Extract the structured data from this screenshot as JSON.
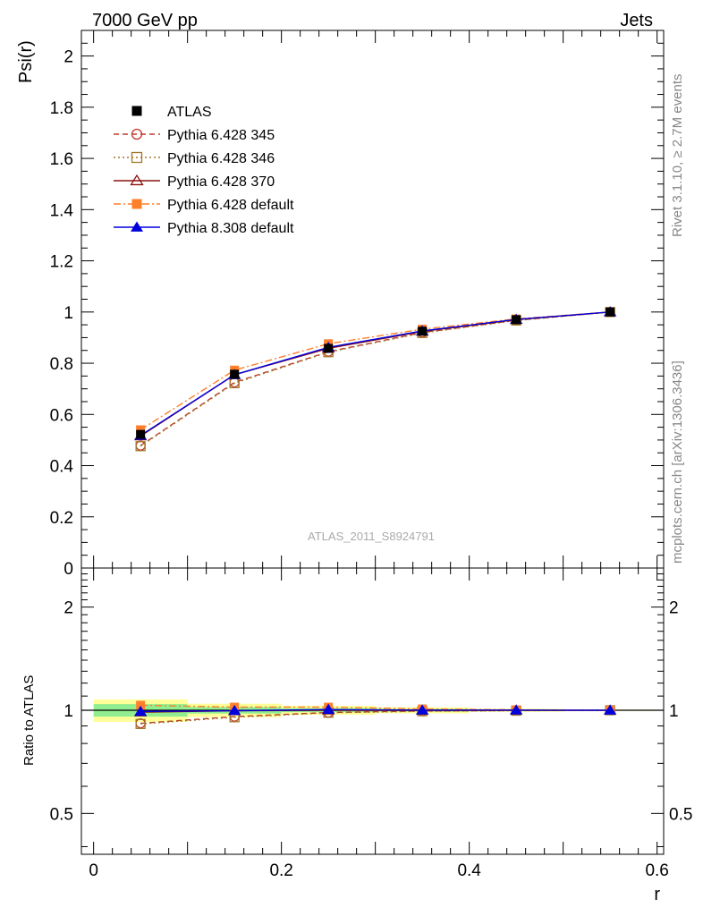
{
  "header": {
    "energy_label": "7000 GeV pp",
    "category_label": "Jets"
  },
  "side_labels": {
    "rivet": "Rivet 3.1.10, ≥ 2.7M events",
    "mcplots": "mcplots.cern.ch [arXiv:1306.3436]"
  },
  "watermark": "ATLAS_2011_S8924791",
  "chart_data": [
    {
      "type": "line",
      "ylabel": "Psi(r)",
      "xlabel": "r",
      "xlim": [
        -0.013,
        0.607
      ],
      "ylim": [
        0,
        2.1
      ],
      "x": [
        0.05,
        0.15,
        0.25,
        0.35,
        0.45,
        0.55
      ],
      "y_ticks": [
        "0",
        "0.2",
        "0.4",
        "0.6",
        "0.8",
        "1",
        "1.2",
        "1.4",
        "1.6",
        "1.8",
        "2"
      ],
      "legend_position": "top-left",
      "series": [
        {
          "name": "ATLAS",
          "values": [
            0.522,
            0.757,
            0.858,
            0.925,
            0.97,
            1.0
          ],
          "color": "#000000",
          "marker": "square-filled",
          "line": "none"
        },
        {
          "name": "Pythia 6.428 345",
          "values": [
            0.478,
            0.725,
            0.845,
            0.92,
            0.968,
            1.0
          ],
          "color": "#c0392b",
          "marker": "circle-open",
          "line": "dashed"
        },
        {
          "name": "Pythia 6.428 346",
          "values": [
            0.476,
            0.722,
            0.843,
            0.918,
            0.967,
            1.0
          ],
          "color": "#a0782a",
          "marker": "square-open",
          "line": "dotted"
        },
        {
          "name": "Pythia 6.428 370",
          "values": [
            0.515,
            0.755,
            0.858,
            0.924,
            0.97,
            1.0
          ],
          "color": "#8b1010",
          "marker": "triangle-open",
          "line": "solid"
        },
        {
          "name": "Pythia 6.428 default",
          "values": [
            0.54,
            0.773,
            0.876,
            0.933,
            0.973,
            1.0
          ],
          "color": "#ff7f2a",
          "marker": "square-filled",
          "line": "dashdot"
        },
        {
          "name": "Pythia 8.308 default",
          "values": [
            0.518,
            0.755,
            0.862,
            0.926,
            0.971,
            1.0
          ],
          "color": "#0000dd",
          "marker": "triangle-filled",
          "line": "solid"
        }
      ]
    },
    {
      "type": "line",
      "ylabel": "Ratio to ATLAS",
      "xlabel": "r",
      "scale": "log",
      "xlim": [
        -0.013,
        0.607
      ],
      "ylim": [
        0.38,
        2.6
      ],
      "x_ticks": [
        "0",
        "0.2",
        "0.4",
        "0.6"
      ],
      "y_ticks": [
        "0.5",
        "1",
        "2"
      ],
      "bands": {
        "x_edges": [
          0.0,
          0.1,
          0.2,
          0.3,
          0.4,
          0.5,
          0.6
        ],
        "stat_color": "#90ee90",
        "stat_half_width": [
          0.042,
          0.022,
          0.013,
          0.009,
          0.005,
          0.002
        ],
        "total_color": "#ffff99",
        "total_half_width": [
          0.075,
          0.045,
          0.03,
          0.02,
          0.01,
          0.004
        ]
      },
      "series": [
        {
          "name": "ATLAS",
          "values": [
            1.0,
            1.0,
            1.0,
            1.0,
            1.0,
            1.0
          ]
        },
        {
          "name": "Pythia 6.428 345",
          "values": [
            0.916,
            0.958,
            0.985,
            0.995,
            0.998,
            1.0
          ]
        },
        {
          "name": "Pythia 6.428 346",
          "values": [
            0.912,
            0.954,
            0.983,
            0.993,
            0.997,
            1.0
          ]
        },
        {
          "name": "Pythia 6.428 370",
          "values": [
            0.987,
            0.997,
            1.0,
            0.999,
            1.0,
            1.0
          ]
        },
        {
          "name": "Pythia 6.428 default",
          "values": [
            1.034,
            1.021,
            1.021,
            1.009,
            1.003,
            1.0
          ]
        },
        {
          "name": "Pythia 8.308 default",
          "values": [
            0.992,
            0.997,
            1.005,
            1.001,
            1.001,
            1.0
          ]
        }
      ]
    }
  ]
}
